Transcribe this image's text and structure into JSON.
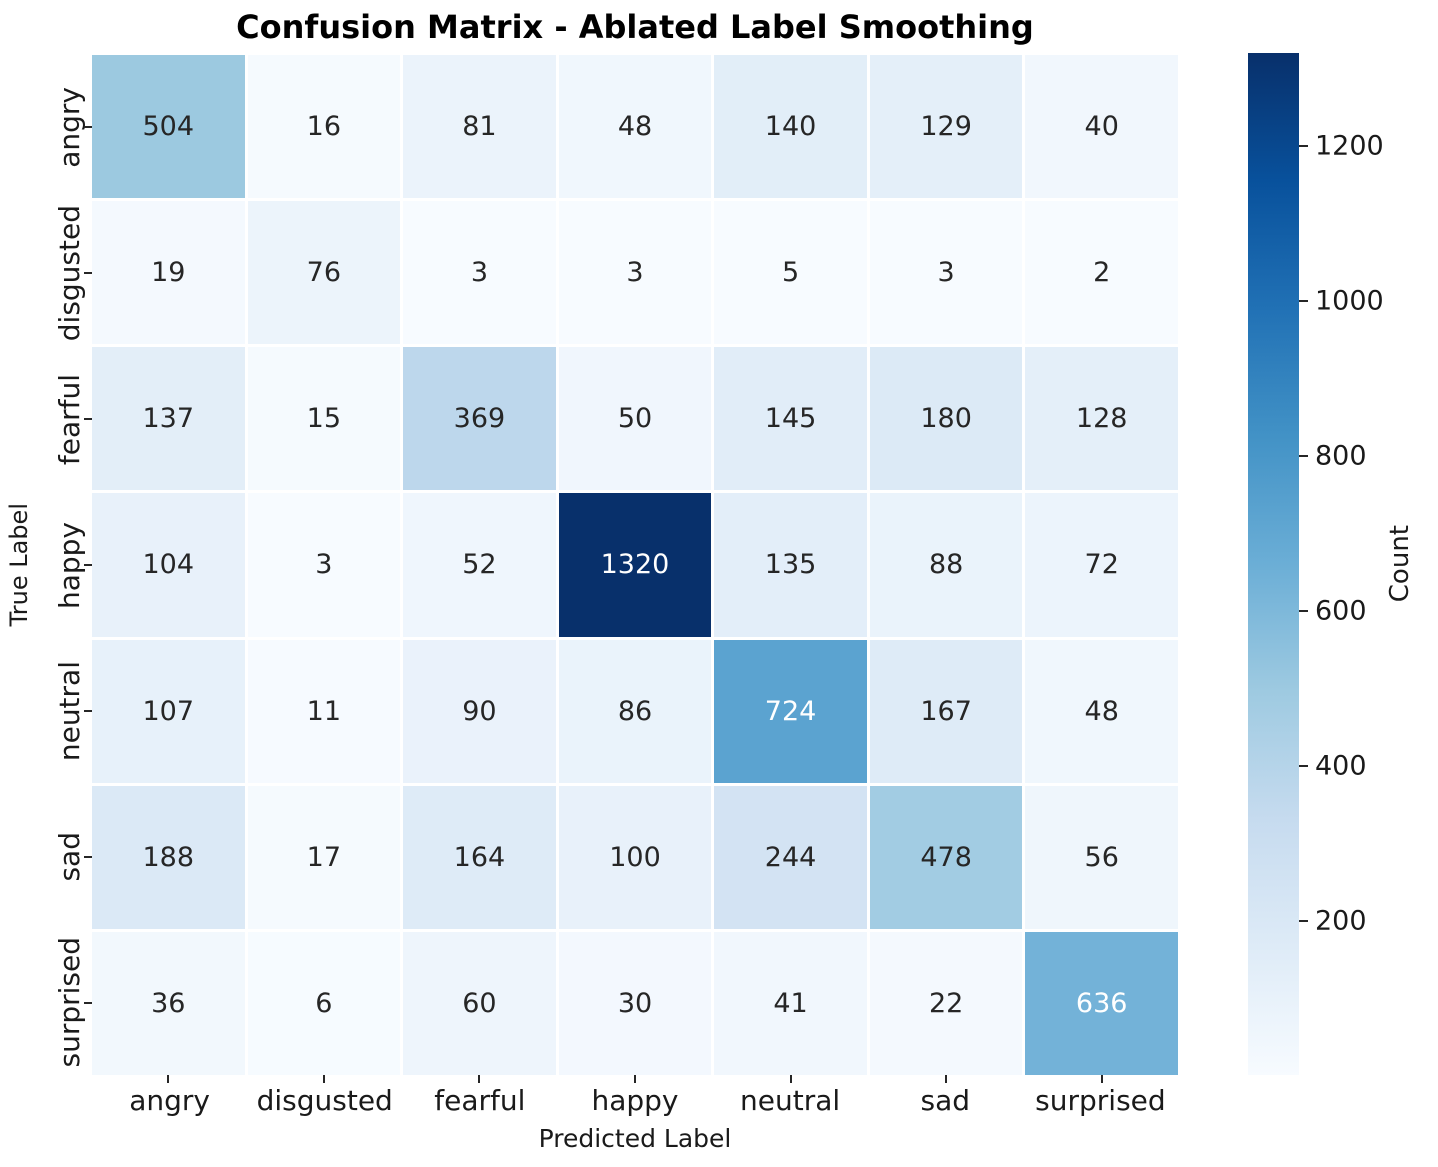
{
  "chart_data": {
    "type": "heatmap",
    "title": "Confusion Matrix - Ablated Label Smoothing",
    "xlabel": "Predicted Label",
    "ylabel": "True Label",
    "categories": [
      "angry",
      "disgusted",
      "fearful",
      "happy",
      "neutral",
      "sad",
      "surprised"
    ],
    "matrix": [
      [
        504,
        16,
        81,
        48,
        140,
        129,
        40
      ],
      [
        19,
        76,
        3,
        3,
        5,
        3,
        2
      ],
      [
        137,
        15,
        369,
        50,
        145,
        180,
        128
      ],
      [
        104,
        3,
        52,
        1320,
        135,
        88,
        72
      ],
      [
        107,
        11,
        90,
        86,
        724,
        167,
        48
      ],
      [
        188,
        17,
        164,
        100,
        244,
        478,
        56
      ],
      [
        36,
        6,
        60,
        30,
        41,
        22,
        636
      ]
    ],
    "colorbar": {
      "label": "Count",
      "ticks": [
        200,
        400,
        600,
        800,
        1000,
        1200
      ],
      "vmin": 2,
      "vmax": 1320
    },
    "colormap": {
      "name": "Blues",
      "stops": [
        "#f7fbff",
        "#deebf7",
        "#c6dbef",
        "#9ecae1",
        "#6baed6",
        "#4292c6",
        "#2171b5",
        "#08519c",
        "#08306b"
      ]
    },
    "annotation_colors": {
      "dark": "#262626",
      "light": "#ffffff"
    },
    "legend_position": "right",
    "grid": false
  }
}
